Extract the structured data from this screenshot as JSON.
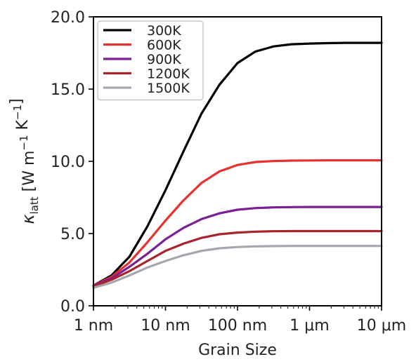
{
  "chart_data": {
    "type": "line",
    "xlabel": "Grain Size",
    "ylabel": "κ_latt [W m⁻¹ K⁻¹]",
    "xscale": "log",
    "x_ticks": [
      {
        "value": 1,
        "label": "1 nm"
      },
      {
        "value": 10,
        "label": "10 nm"
      },
      {
        "value": 100,
        "label": "100 nm"
      },
      {
        "value": 1000,
        "label": "1 μm"
      },
      {
        "value": 10000,
        "label": "10 μm"
      }
    ],
    "y_ticks": [
      {
        "value": 0,
        "label": "0.0"
      },
      {
        "value": 5,
        "label": "5.0"
      },
      {
        "value": 10,
        "label": "10.0"
      },
      {
        "value": 15,
        "label": "15.0"
      },
      {
        "value": 20,
        "label": "20.0"
      }
    ],
    "xlim": [
      1,
      10000
    ],
    "ylim": [
      0,
      20
    ],
    "x_unit": "nm",
    "grid": false,
    "legend_position": "top-left",
    "x": [
      1,
      1.78,
      3.16,
      5.62,
      10,
      17.8,
      31.6,
      56.2,
      100,
      178,
      316,
      562,
      1000,
      1780,
      3160,
      5620,
      10000
    ],
    "series": [
      {
        "name": "300K",
        "color": "#000000",
        "values": [
          1.4,
          2.1,
          3.4,
          5.5,
          8.0,
          10.7,
          13.3,
          15.3,
          16.8,
          17.6,
          17.95,
          18.1,
          18.15,
          18.18,
          18.2,
          18.2,
          18.2
        ]
      },
      {
        "name": "600K",
        "color": "#e8302e",
        "values": [
          1.4,
          2.0,
          3.0,
          4.4,
          5.9,
          7.3,
          8.5,
          9.3,
          9.75,
          9.95,
          10.02,
          10.05,
          10.06,
          10.07,
          10.07,
          10.07,
          10.07
        ]
      },
      {
        "name": "900K",
        "color": "#7a1f96",
        "values": [
          1.4,
          1.9,
          2.7,
          3.6,
          4.6,
          5.4,
          6.0,
          6.4,
          6.65,
          6.76,
          6.81,
          6.83,
          6.84,
          6.84,
          6.84,
          6.84,
          6.84
        ]
      },
      {
        "name": "1200K",
        "color": "#a8242b",
        "values": [
          1.35,
          1.8,
          2.4,
          3.1,
          3.8,
          4.3,
          4.7,
          4.95,
          5.07,
          5.13,
          5.16,
          5.17,
          5.17,
          5.17,
          5.17,
          5.17,
          5.17
        ]
      },
      {
        "name": "1500K",
        "color": "#a6a6b0",
        "values": [
          1.25,
          1.6,
          2.1,
          2.65,
          3.1,
          3.5,
          3.8,
          3.98,
          4.07,
          4.11,
          4.13,
          4.14,
          4.14,
          4.14,
          4.14,
          4.14,
          4.14
        ]
      }
    ]
  }
}
